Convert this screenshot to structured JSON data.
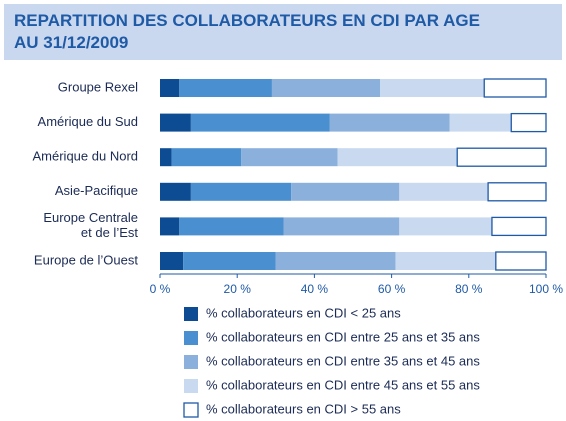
{
  "chart_data": {
    "type": "stacked_barh",
    "title": "REPARTITION DES COLLABORATEURS EN CDI PAR AGE\nAU 31/12/2009",
    "categories": [
      "Groupe Rexel",
      "Amérique du Sud",
      "Amérique du Nord",
      "Asie-Pacifique",
      "Europe Centrale\net de l’Est",
      "Europe de l’Ouest"
    ],
    "series": [
      {
        "name": "% collaborateurs en CDI < 25 ans",
        "color": "#0d4c93",
        "values": [
          5,
          8,
          3,
          8,
          5,
          6
        ]
      },
      {
        "name": "% collaborateurs en CDI entre 25 ans et 35 ans",
        "color": "#4a8fd0",
        "values": [
          24,
          36,
          18,
          26,
          27,
          24
        ]
      },
      {
        "name": "% collaborateurs en CDI entre 35 ans et 45 ans",
        "color": "#8bb0dc",
        "values": [
          28,
          31,
          25,
          28,
          30,
          31
        ]
      },
      {
        "name": "% collaborateurs en CDI entre 45 ans et 55 ans",
        "color": "#c8d9f0",
        "values": [
          27,
          16,
          31,
          23,
          24,
          26
        ]
      },
      {
        "name": "% collaborateurs en CDI > 55 ans",
        "color": "#ffffff",
        "values": [
          16,
          9,
          23,
          15,
          14,
          13
        ]
      }
    ],
    "xlim": [
      0,
      100
    ],
    "xticks": [
      {
        "value": 0,
        "label": "0 %"
      },
      {
        "value": 20,
        "label": "20 %"
      },
      {
        "value": 40,
        "label": "40 %"
      },
      {
        "value": 60,
        "label": "60 %"
      },
      {
        "value": 80,
        "label": "80 %"
      },
      {
        "value": 100,
        "label": "100 %"
      }
    ]
  }
}
